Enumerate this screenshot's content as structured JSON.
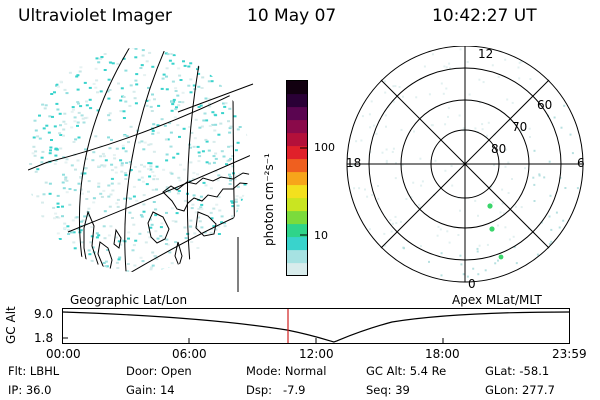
{
  "header": {
    "instrument": "Ultraviolet Imager",
    "date": "10 May 07",
    "time": "10:42:27 UT"
  },
  "colorbar": {
    "label": "photon cm⁻²s⁻¹",
    "ticks": [
      "100",
      "10"
    ],
    "colors": [
      "#d8ecec",
      "#a6e2e2",
      "#39d3cc",
      "#2fd48a",
      "#7bdb3c",
      "#c9e521",
      "#f3e01e",
      "#f7a51a",
      "#ef5f1f",
      "#e0202a",
      "#b3103a",
      "#8a0a4a",
      "#5a0550",
      "#2a0036",
      "#120010"
    ]
  },
  "left_panel": {
    "label": "Geographic Lat/Lon"
  },
  "right_panel": {
    "label": "Apex MLat/MLT",
    "mlt_labels": {
      "top": "12",
      "left": "18",
      "right": "6",
      "bottom": "0"
    },
    "lat_labels": [
      "60",
      "70",
      "80"
    ]
  },
  "timeline": {
    "axis_label": "GC Alt",
    "y_ticks": [
      "9.0",
      "1.8"
    ],
    "x_ticks": [
      "00:00",
      "06:00",
      "12:00",
      "18:00",
      "23:59"
    ],
    "marker_color": "#d02020"
  },
  "status": {
    "filter": "Flt: LBHL",
    "ip": "IP: 36.0",
    "door": "Door: Open",
    "gain": "Gain: 14",
    "mode": "Mode: Normal",
    "dsp": "Dsp:   -7.9",
    "gc_alt": "GC Alt: 5.4 Re",
    "seq": "Seq: 39",
    "glat": "GLat: -58.1",
    "glon": "GLon: 277.7"
  }
}
